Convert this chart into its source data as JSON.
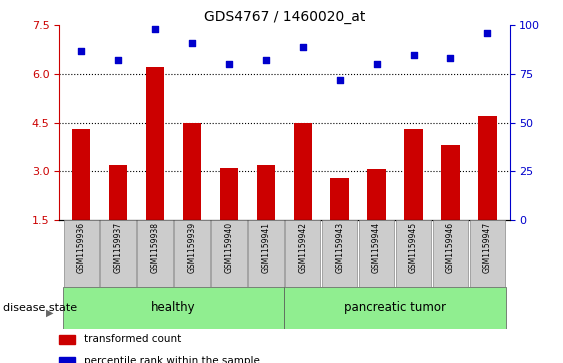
{
  "title": "GDS4767 / 1460020_at",
  "samples": [
    "GSM1159936",
    "GSM1159937",
    "GSM1159938",
    "GSM1159939",
    "GSM1159940",
    "GSM1159941",
    "GSM1159942",
    "GSM1159943",
    "GSM1159944",
    "GSM1159945",
    "GSM1159946",
    "GSM1159947"
  ],
  "bar_values": [
    4.3,
    3.2,
    6.2,
    4.5,
    3.1,
    3.2,
    4.5,
    2.8,
    3.05,
    4.3,
    3.8,
    4.7
  ],
  "scatter_values": [
    87,
    82,
    98,
    91,
    80,
    82,
    89,
    72,
    80,
    85,
    83,
    96
  ],
  "bar_color": "#cc0000",
  "scatter_color": "#0000cc",
  "ylim_left": [
    1.5,
    7.5
  ],
  "ylim_right": [
    0,
    100
  ],
  "yticks_left": [
    1.5,
    3.0,
    4.5,
    6.0,
    7.5
  ],
  "yticks_right": [
    0,
    25,
    50,
    75,
    100
  ],
  "hlines": [
    3.0,
    4.5,
    6.0
  ],
  "groups": [
    {
      "label": "healthy",
      "start": 0,
      "end": 6,
      "color": "#90ee90"
    },
    {
      "label": "pancreatic tumor",
      "start": 6,
      "end": 12,
      "color": "#90ee90"
    }
  ],
  "group_label": "disease state",
  "legend_items": [
    {
      "label": "transformed count",
      "color": "#cc0000"
    },
    {
      "label": "percentile rank within the sample",
      "color": "#0000cc"
    }
  ],
  "tick_label_bg": "#cccccc",
  "bar_bottom": 1.5,
  "bar_width": 0.5
}
